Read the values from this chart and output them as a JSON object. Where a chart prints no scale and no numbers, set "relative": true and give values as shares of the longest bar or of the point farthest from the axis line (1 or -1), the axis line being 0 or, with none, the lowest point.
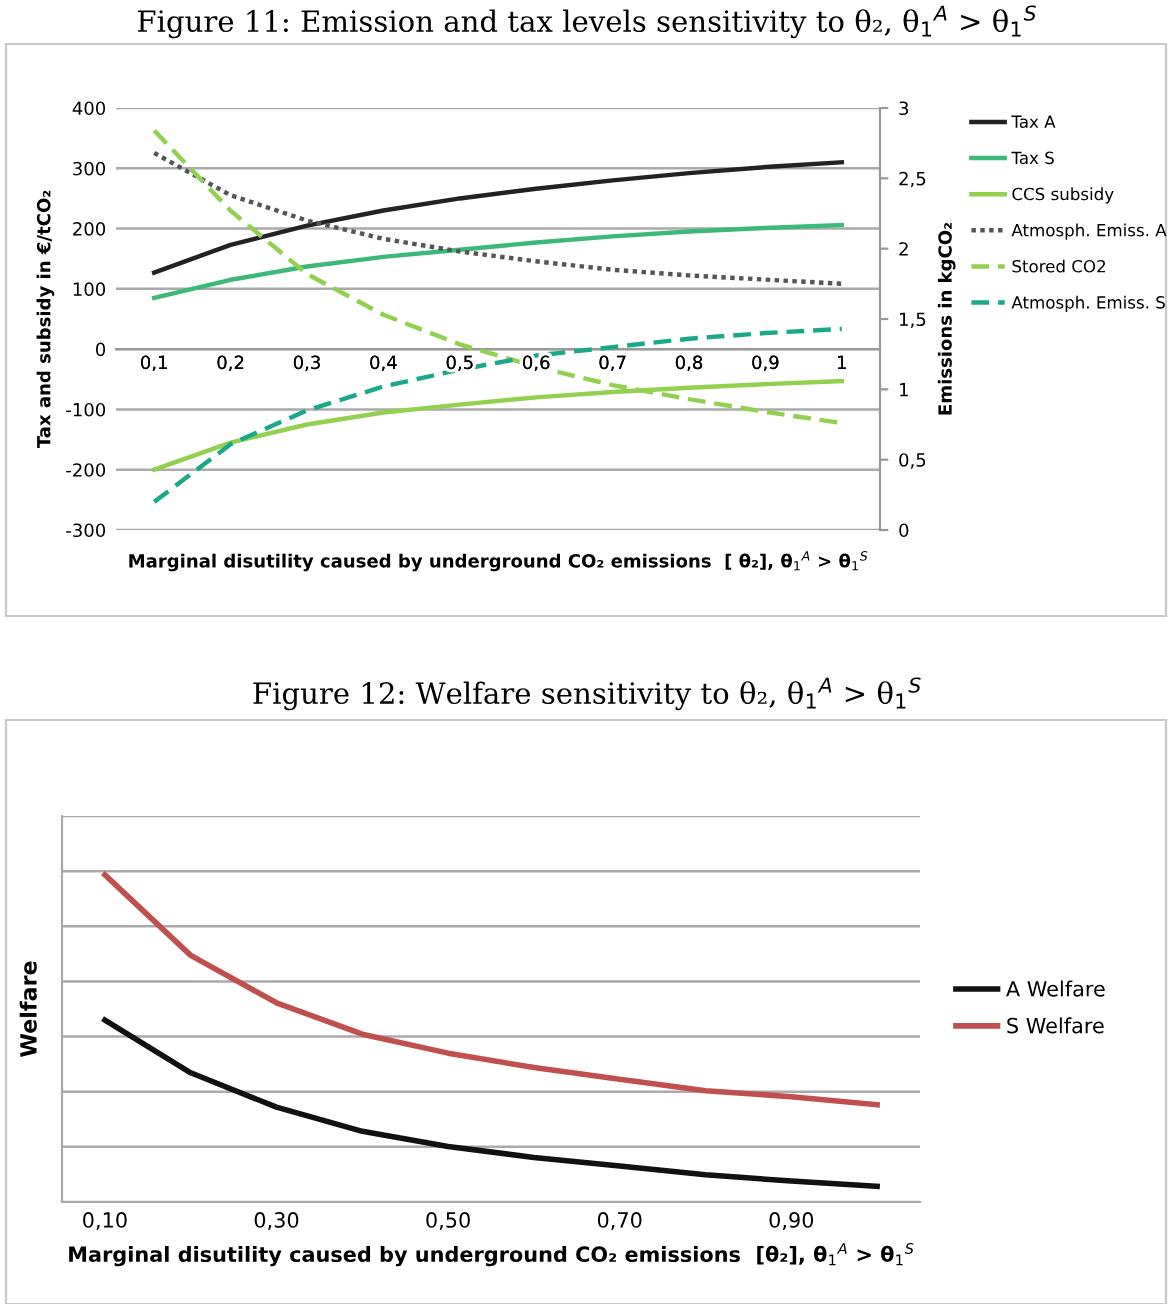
{
  "chart_data": [
    {
      "type": "line",
      "title": "Figure 11: Emission and tax levels sensitivity to θ₂, θ$_{1}$$^{A}$ > θ$_{1}$$^{S}$",
      "xlabel": "Marginal disutility caused by underground CO₂ emissions  [ θ₂], θ$_{1}$$^{A}$ > θ$_{1}$$^{S}$",
      "ylabel": "Tax and subsidy in €/tCO₂",
      "y2label": "Emissions in kgCO₂",
      "categories": [
        "0,1",
        "0,2",
        "0,3",
        "0,4",
        "0,5",
        "0,6",
        "0,7",
        "0,8",
        "0,9",
        "1"
      ],
      "ylim": [
        -300,
        400
      ],
      "yticks": [
        -300,
        -200,
        -100,
        0,
        100,
        200,
        300,
        400
      ],
      "y2lim": [
        0,
        3
      ],
      "y2ticks": [
        0,
        {
          "value": 0.5,
          "label": "0,5"
        },
        1,
        {
          "value": 1.5,
          "label": "1,5"
        },
        2,
        {
          "value": 2.5,
          "label": "2,5"
        },
        3
      ],
      "grid": "y",
      "legend": "right",
      "series": [
        {
          "name": "Tax A",
          "color": "#222222",
          "line_style": "solid",
          "values": [
            127,
            173,
            205,
            230,
            250,
            266,
            280,
            292,
            302,
            310
          ]
        },
        {
          "name": "Tax S",
          "color": "#3cb878",
          "line_style": "solid",
          "values": [
            85,
            115,
            137,
            153,
            165,
            177,
            187,
            195,
            201,
            206
          ]
        },
        {
          "name": "CCS subsidy",
          "color": "#92d050",
          "line_style": "solid",
          "values": [
            -200,
            -155,
            -125,
            -105,
            -92,
            -80,
            -71,
            -64,
            -58,
            -53
          ]
        },
        {
          "name": "Atmosph. Emiss. A",
          "color": "#555555",
          "line_style": "dotted",
          "axis": "y2",
          "values": [
            2.68,
            2.38,
            2.2,
            2.07,
            1.98,
            1.91,
            1.85,
            1.81,
            1.78,
            1.75
          ]
        },
        {
          "name": "Stored CO2",
          "color": "#92d050",
          "line_style": "dashed",
          "axis": "y2",
          "values": [
            2.84,
            2.27,
            1.82,
            1.53,
            1.32,
            1.16,
            1.03,
            0.93,
            0.84,
            0.76
          ]
        },
        {
          "name": "Atmosph. Emiss. S",
          "color": "#1aa88a",
          "line_style": "dashed",
          "axis": "y2",
          "values": [
            0.2,
            0.61,
            0.85,
            1.02,
            1.14,
            1.24,
            1.3,
            1.36,
            1.4,
            1.43
          ]
        }
      ]
    },
    {
      "type": "line",
      "title": "Figure 12: Welfare sensitivity to θ₂, θ$_{1}$$^{A}$ > θ$_{1}$$^{S}$",
      "xlabel": "Marginal disutility caused by underground CO₂ emissions  [θ₂], θ$_{1}$$^{A}$ > θ$_{1}$$^{S}$",
      "ylabel": "Welfare",
      "categories": [
        "0,10",
        null,
        "0,30",
        null,
        "0,50",
        null,
        "0,70",
        null,
        "0,90",
        null
      ],
      "relative": true,
      "grid": "y",
      "legend": "right",
      "series": [
        {
          "name": "A Welfare",
          "color": "#111111",
          "line_style": "solid",
          "values": [
            0.556,
            0.395,
            0.29,
            0.216,
            0.17,
            0.136,
            0.11,
            0.083,
            0.064,
            0.048
          ]
        },
        {
          "name": "S Welfare",
          "color": "#c0504d",
          "line_style": "solid",
          "values": [
            1,
            0.754,
            0.609,
            0.513,
            0.455,
            0.411,
            0.375,
            0.34,
            0.322,
            0.297
          ]
        }
      ]
    }
  ]
}
